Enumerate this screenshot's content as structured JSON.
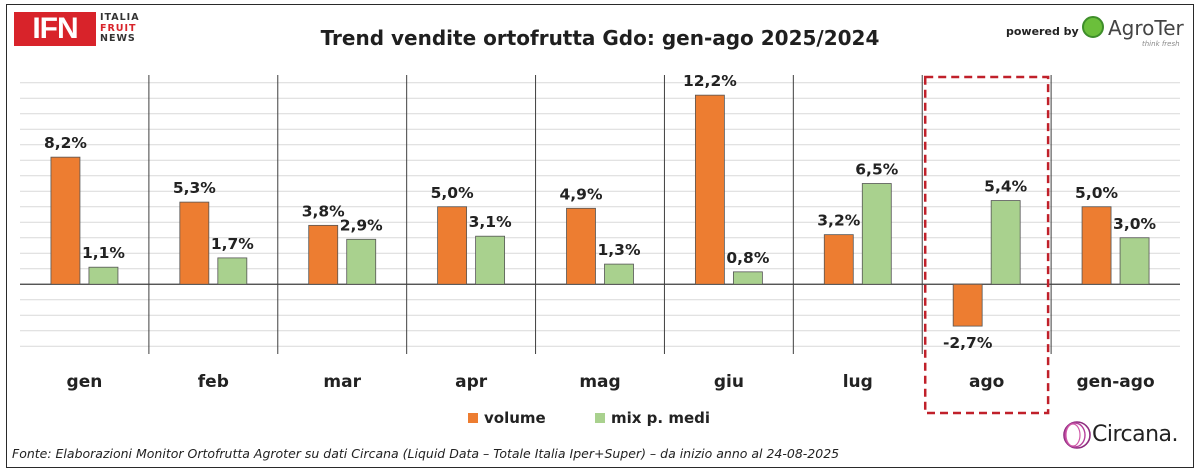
{
  "header": {
    "logo_main": "IFN",
    "logo_side": [
      "ITALIA",
      "FRUIT",
      "NEWS"
    ],
    "title": "Trend vendite ortofrutta Gdo: gen-ago 2025/2024",
    "powered_by": "powered by",
    "brand": "AgroTer",
    "brand_tagline": "think fresh"
  },
  "chart_data": {
    "type": "bar",
    "title": "Trend vendite ortofrutta Gdo: gen-ago 2025/2024",
    "categories": [
      "gen",
      "feb",
      "mar",
      "apr",
      "mag",
      "giu",
      "lug",
      "ago",
      "gen-ago"
    ],
    "series": [
      {
        "name": "volume",
        "color": "#ed7d31",
        "values": [
          8.2,
          5.3,
          3.8,
          5.0,
          4.9,
          12.2,
          3.2,
          -2.7,
          5.0
        ],
        "labels": [
          "8,2%",
          "5,3%",
          "3,8%",
          "5,0%",
          "4,9%",
          "12,2%",
          "3,2%",
          "-2,7%",
          "5,0%"
        ]
      },
      {
        "name": "mix p. medi",
        "color": "#a9d18e",
        "values": [
          1.1,
          1.7,
          2.9,
          3.1,
          1.3,
          0.8,
          6.5,
          5.4,
          3.0
        ],
        "labels": [
          "1,1%",
          "1,7%",
          "2,9%",
          "3,1%",
          "1,3%",
          "0,8%",
          "6,5%",
          "5,4%",
          "3,0%"
        ]
      }
    ],
    "highlighted_category": "ago",
    "ylim": [
      -4.5,
      13.5
    ],
    "grid": true,
    "legend": "bottom-center"
  },
  "footer": {
    "source": "Fonte: Elaborazioni Monitor Ortofrutta Agroter su dati Circana (Liquid Data – Totale Italia Iper+Super) –  da inizio anno al 24-08-2025",
    "brand": "Circana."
  }
}
